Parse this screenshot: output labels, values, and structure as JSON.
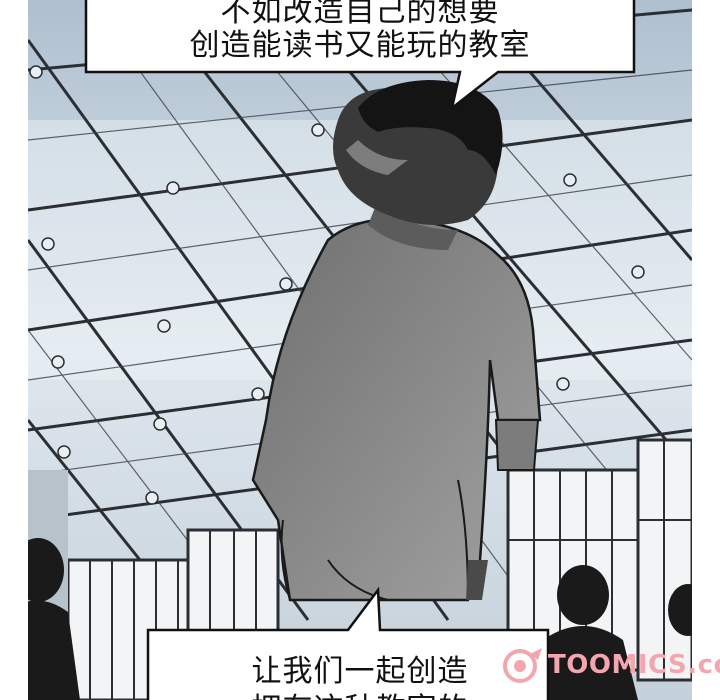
{
  "speech_bubbles": {
    "top": {
      "line1": "不如改造自己的想要",
      "line2": "创造能读书又能玩的教室"
    },
    "bottom": {
      "line1": "让我们一起创造",
      "line2": "拥有这种教室的"
    }
  },
  "watermark": {
    "text": "TOOMICS.com",
    "color": "#f4a6ae"
  },
  "colors": {
    "sky": "#c9d7e3",
    "frame": "#2b2f33",
    "figure": "#8e8e8e",
    "hair": "#141414"
  }
}
